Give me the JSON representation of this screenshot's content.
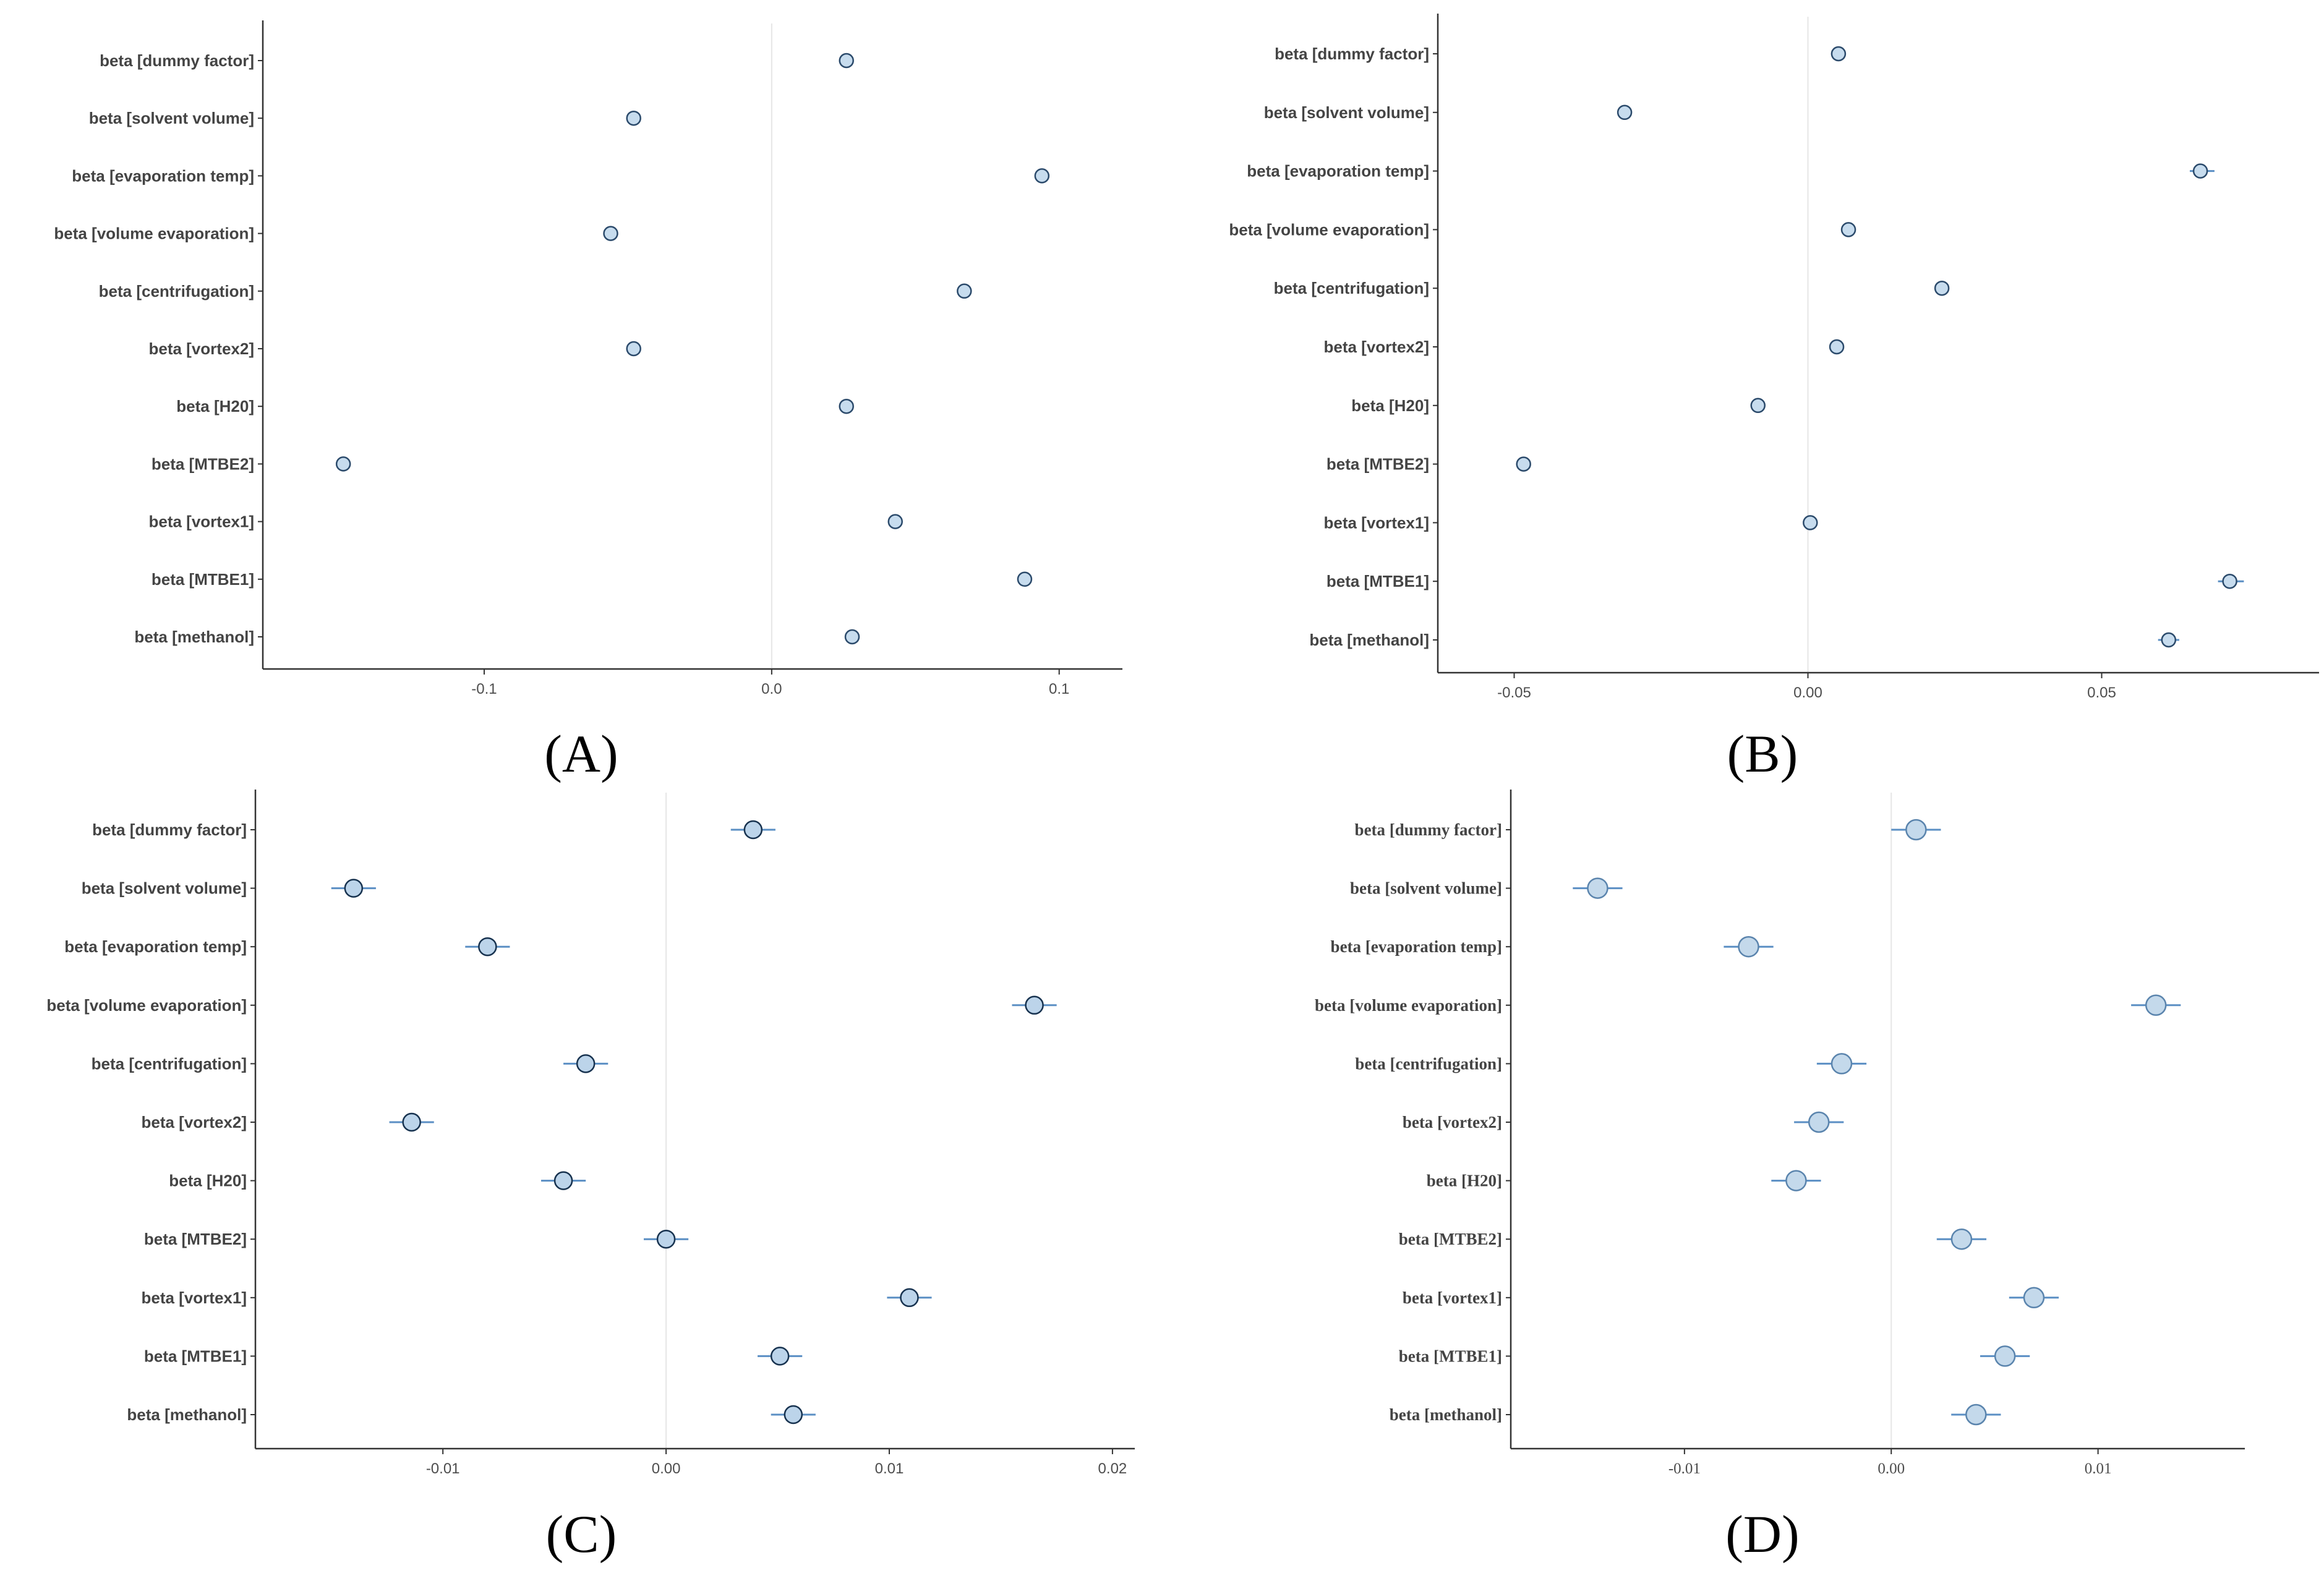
{
  "figure": {
    "panel_letters": [
      "(A)",
      "(B)",
      "(C)",
      "(D)"
    ]
  },
  "chart_data": [
    {
      "type": "scatter",
      "panel": "(A)",
      "title": "",
      "xlabel": "",
      "ylabel": "",
      "categories": [
        "beta [dummy factor]",
        "beta [solvent volume]",
        "beta [evaporation temp]",
        "beta [volume evaporation]",
        "beta [centrifugation]",
        "beta [vortex2]",
        "beta [H20]",
        "beta [MTBE2]",
        "beta [vortex1]",
        "beta [MTBE1]",
        "beta [methanol]"
      ],
      "values": [
        0.026,
        -0.048,
        0.094,
        -0.056,
        0.067,
        -0.048,
        0.026,
        -0.149,
        0.043,
        0.088,
        0.028
      ],
      "interval_low": [
        0.026,
        -0.048,
        0.094,
        -0.056,
        0.067,
        -0.048,
        0.026,
        -0.149,
        0.043,
        0.088,
        0.028
      ],
      "interval_high": [
        0.026,
        -0.048,
        0.094,
        -0.056,
        0.067,
        -0.048,
        0.026,
        -0.149,
        0.043,
        0.088,
        0.028
      ],
      "xlim": [
        -0.177,
        0.122
      ],
      "xticks": [
        -0.1,
        0.0,
        0.1
      ],
      "xtick_labels": [
        "-0.1",
        "0.0",
        "0.1"
      ],
      "reference_line": 0,
      "grid": false
    },
    {
      "type": "scatter",
      "panel": "(B)",
      "title": "",
      "xlabel": "",
      "ylabel": "",
      "categories": [
        "beta [dummy factor]",
        "beta [solvent volume]",
        "beta [evaporation temp]",
        "beta [volume evaporation]",
        "beta [centrifugation]",
        "beta [vortex2]",
        "beta [H20]",
        "beta [MTBE2]",
        "beta [vortex1]",
        "beta [MTBE1]",
        "beta [methanol]"
      ],
      "values": [
        0.0052,
        -0.0312,
        0.0668,
        0.0069,
        0.0228,
        0.0049,
        -0.0085,
        -0.0484,
        0.0004,
        0.0718,
        0.0614
      ],
      "interval_low": [
        0.0046,
        -0.0318,
        0.065,
        0.0061,
        0.022,
        0.0042,
        -0.0092,
        -0.0492,
        -0.0003,
        0.0698,
        0.0596
      ],
      "interval_high": [
        0.0058,
        -0.0306,
        0.0692,
        0.0075,
        0.0236,
        0.0056,
        -0.0078,
        -0.0476,
        0.0011,
        0.0742,
        0.0632
      ],
      "xlim": [
        -0.063,
        0.087
      ],
      "xticks": [
        -0.05,
        0.0,
        0.05
      ],
      "xtick_labels": [
        "-0.05",
        "0.00",
        "0.05"
      ],
      "reference_line": 0,
      "grid": false
    },
    {
      "type": "scatter",
      "panel": "(C)",
      "title": "",
      "xlabel": "",
      "ylabel": "",
      "categories": [
        "beta [dummy factor]",
        "beta [solvent volume]",
        "beta [evaporation temp]",
        "beta [volume evaporation]",
        "beta [centrifugation]",
        "beta [vortex2]",
        "beta [H20]",
        "beta [MTBE2]",
        "beta [vortex1]",
        "beta [MTBE1]",
        "beta [methanol]"
      ],
      "values": [
        0.0039,
        -0.014,
        -0.008,
        0.0165,
        -0.0036,
        -0.0114,
        -0.0046,
        0.0,
        0.0109,
        0.0051,
        0.0057
      ],
      "interval_low": [
        0.0029,
        -0.015,
        -0.009,
        0.0155,
        -0.0046,
        -0.0124,
        -0.0056,
        -0.001,
        0.0099,
        0.0041,
        0.0047
      ],
      "interval_high": [
        0.0049,
        -0.013,
        -0.007,
        0.0175,
        -0.0026,
        -0.0104,
        -0.0036,
        0.001,
        0.0119,
        0.0061,
        0.0067
      ],
      "xlim": [
        -0.0184,
        0.021
      ],
      "xticks": [
        -0.01,
        0.0,
        0.01,
        0.02
      ],
      "xtick_labels": [
        "-0.01",
        "0.00",
        "0.01",
        "0.02"
      ],
      "reference_line": 0,
      "grid": false
    },
    {
      "type": "scatter",
      "panel": "(D)",
      "title": "",
      "xlabel": "",
      "ylabel": "",
      "categories": [
        "beta [dummy factor]",
        "beta [solvent volume]",
        "beta [evaporation temp]",
        "beta [volume evaporation]",
        "beta [centrifugation]",
        "beta [vortex2]",
        "beta [H20]",
        "beta [MTBE2]",
        "beta [vortex1]",
        "beta [MTBE1]",
        "beta [methanol]"
      ],
      "values": [
        0.0012,
        -0.0142,
        -0.0069,
        0.0128,
        -0.0024,
        -0.0035,
        -0.0046,
        0.0034,
        0.0069,
        0.0055,
        0.0041
      ],
      "interval_low": [
        0.0,
        -0.0154,
        -0.0081,
        0.0116,
        -0.0036,
        -0.0047,
        -0.0058,
        0.0022,
        0.0057,
        0.0043,
        0.0029
      ],
      "interval_high": [
        0.0024,
        -0.013,
        -0.0057,
        0.014,
        -0.0012,
        -0.0023,
        -0.0034,
        0.0046,
        0.0081,
        0.0067,
        0.0053
      ],
      "xlim": [
        -0.0184,
        0.0171
      ],
      "xticks": [
        -0.01,
        0.0,
        0.01
      ],
      "xtick_labels": [
        "-0.01",
        "0.00",
        "0.01"
      ],
      "reference_line": 0,
      "grid": false
    }
  ]
}
